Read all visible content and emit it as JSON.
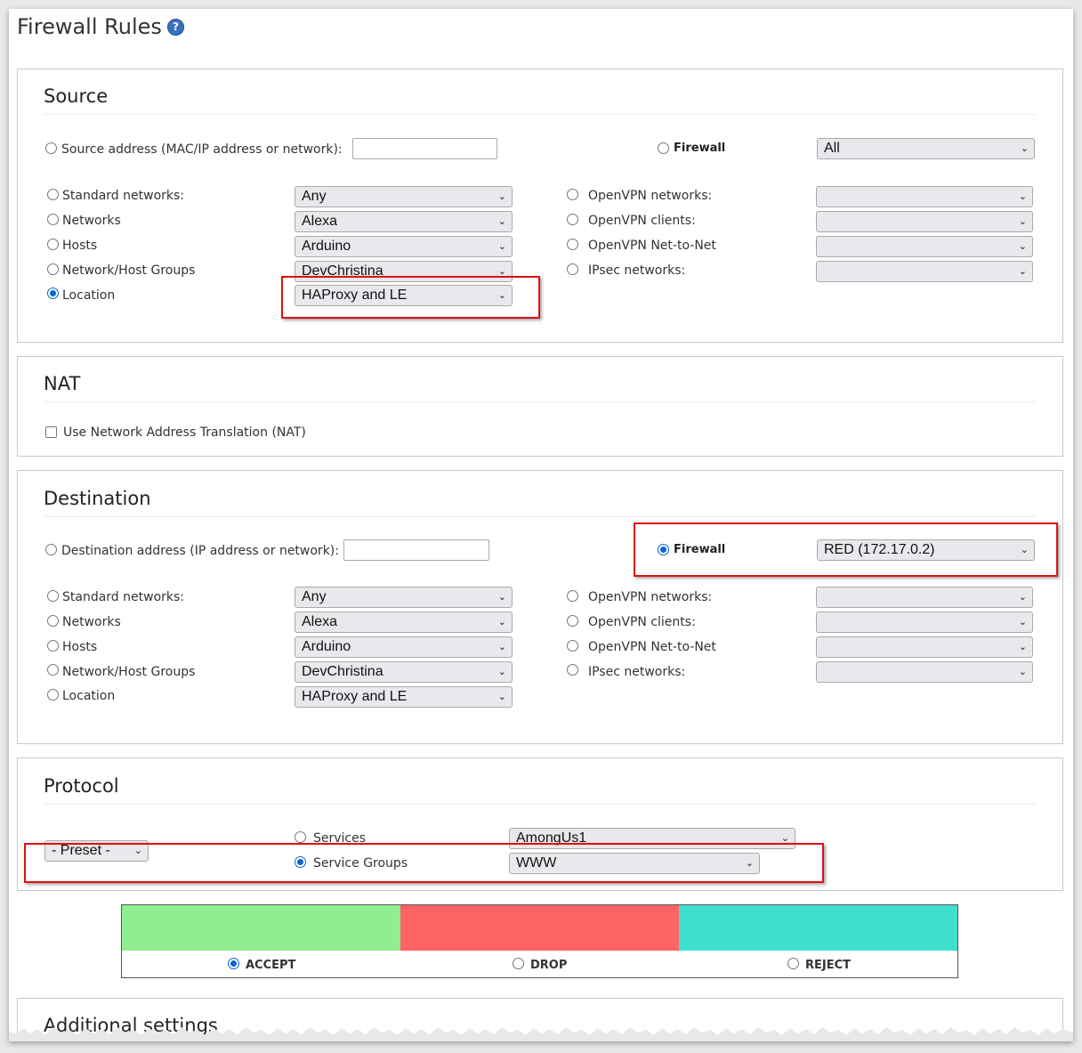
{
  "page": {
    "title": "Firewall Rules",
    "help_glyph": "?"
  },
  "source": {
    "heading": "Source",
    "address_label": "Source address (MAC/IP address or network):",
    "firewall_label": "Firewall",
    "firewall_value": "All",
    "standard_networks": {
      "label": "Standard networks:",
      "value": "Any"
    },
    "networks": {
      "label": "Networks",
      "value": "Alexa"
    },
    "hosts": {
      "label": "Hosts",
      "value": "Arduino"
    },
    "groups": {
      "label": "Network/Host Groups",
      "value": "DevChristina"
    },
    "location": {
      "label": "Location",
      "value": "HAProxy and LE",
      "selected": true
    },
    "openvpn_networks": "OpenVPN networks:",
    "openvpn_clients": "OpenVPN clients:",
    "openvpn_n2n": "OpenVPN Net-to-Net",
    "ipsec_networks": "IPsec networks:"
  },
  "nat": {
    "heading": "NAT",
    "checkbox_label": "Use Network Address Translation (NAT)"
  },
  "destination": {
    "heading": "Destination",
    "address_label": "Destination address (IP address or network):",
    "firewall_label": "Firewall",
    "firewall_value": "RED (172.17.0.2)",
    "standard_networks": {
      "label": "Standard networks:",
      "value": "Any"
    },
    "networks": {
      "label": "Networks",
      "value": "Alexa"
    },
    "hosts": {
      "label": "Hosts",
      "value": "Arduino"
    },
    "groups": {
      "label": "Network/Host Groups",
      "value": "DevChristina"
    },
    "location": {
      "label": "Location",
      "value": "HAProxy and LE"
    },
    "openvpn_networks": "OpenVPN networks:",
    "openvpn_clients": "OpenVPN clients:",
    "openvpn_n2n": "OpenVPN Net-to-Net",
    "ipsec_networks": "IPsec networks:"
  },
  "protocol": {
    "heading": "Protocol",
    "preset_value": "- Preset -",
    "services_label": "Services",
    "services_value": "AmongUs1",
    "service_groups_label": "Service Groups",
    "service_groups_value": "WWW"
  },
  "actions": {
    "accept": {
      "label": "ACCEPT",
      "color": "#90ee90"
    },
    "drop": {
      "label": "DROP",
      "color": "#ff6464"
    },
    "reject": {
      "label": "REJECT",
      "color": "#40e0d0"
    },
    "selected": "ACCEPT"
  },
  "additional": {
    "heading": "Additional settings"
  },
  "icons": {
    "dropdown": "chevron-down-icon",
    "help": "help-icon"
  },
  "colors": {
    "highlight": "#e01010",
    "radio_selected": "#0a64d6"
  }
}
